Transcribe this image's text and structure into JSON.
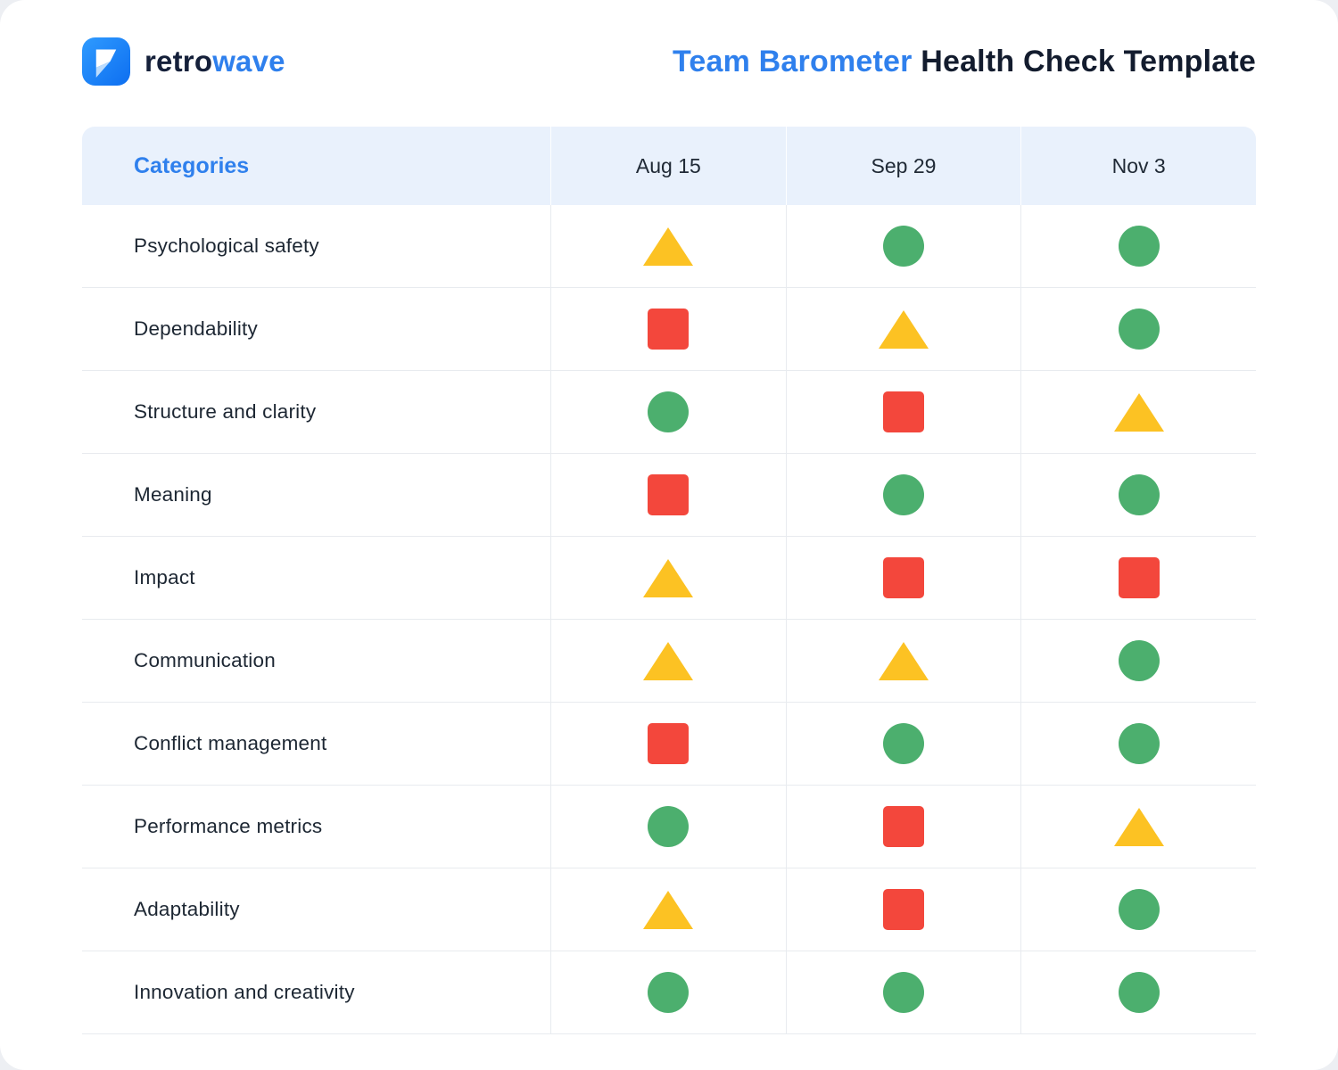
{
  "brand": {
    "name_primary": "retro",
    "name_accent": "wave"
  },
  "header": {
    "title_accent": "Team Barometer",
    "title_rest": "Health Check Template"
  },
  "colors": {
    "accent": "#2f80ed",
    "good": "#4caf6e",
    "warning": "#fcc223",
    "critical": "#f3473c",
    "header_bg": "#e9f1fc",
    "logo_blue": "#1e88f7",
    "logo_light": "#bcdcfd"
  },
  "statuses": {
    "good": {
      "shape": "circle",
      "color": "#4caf6e",
      "meaning": "green circle"
    },
    "warning": {
      "shape": "triangle",
      "color": "#fcc223",
      "meaning": "yellow triangle"
    },
    "critical": {
      "shape": "square",
      "color": "#f3473c",
      "meaning": "red square"
    }
  },
  "chart_data": {
    "type": "table",
    "title": "Team Barometer Health Check Template",
    "category_header": "Categories",
    "columns": [
      "Aug 15",
      "Sep 29",
      "Nov 3"
    ],
    "rows": [
      {
        "label": "Psychological safety",
        "values": [
          "warning",
          "good",
          "good"
        ]
      },
      {
        "label": "Dependability",
        "values": [
          "critical",
          "warning",
          "good"
        ]
      },
      {
        "label": "Structure and clarity",
        "values": [
          "good",
          "critical",
          "warning"
        ]
      },
      {
        "label": "Meaning",
        "values": [
          "critical",
          "good",
          "good"
        ]
      },
      {
        "label": "Impact",
        "values": [
          "warning",
          "critical",
          "critical"
        ]
      },
      {
        "label": "Communication",
        "values": [
          "warning",
          "warning",
          "good"
        ]
      },
      {
        "label": "Conflict management",
        "values": [
          "critical",
          "good",
          "good"
        ]
      },
      {
        "label": "Performance metrics",
        "values": [
          "good",
          "critical",
          "warning"
        ]
      },
      {
        "label": "Adaptability",
        "values": [
          "warning",
          "critical",
          "good"
        ]
      },
      {
        "label": "Innovation and creativity",
        "values": [
          "good",
          "good",
          "good"
        ]
      }
    ],
    "legend": {
      "good": "green circle",
      "warning": "yellow triangle",
      "critical": "red square"
    }
  }
}
